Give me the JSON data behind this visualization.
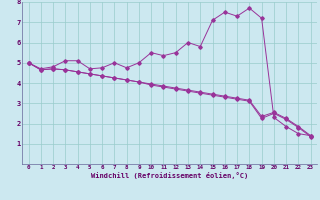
{
  "xlabel": "Windchill (Refroidissement éolien,°C)",
  "bg_color": "#cce8f0",
  "line_color": "#993399",
  "grid_color": "#99cccc",
  "xlim": [
    -0.5,
    23.5
  ],
  "ylim": [
    0,
    8
  ],
  "xticks": [
    0,
    1,
    2,
    3,
    4,
    5,
    6,
    7,
    8,
    9,
    10,
    11,
    12,
    13,
    14,
    15,
    16,
    17,
    18,
    19,
    20,
    21,
    22,
    23
  ],
  "yticks": [
    1,
    2,
    3,
    4,
    5,
    6,
    7,
    8
  ],
  "line1_x": [
    0,
    1,
    2,
    3,
    4,
    5,
    6,
    7,
    8,
    9,
    10,
    11,
    12,
    13,
    14,
    15,
    16,
    17,
    18,
    19,
    20,
    21,
    22,
    23
  ],
  "line1_y": [
    5.0,
    4.7,
    4.8,
    5.1,
    5.1,
    4.7,
    4.75,
    5.0,
    4.75,
    5.0,
    5.5,
    5.35,
    5.5,
    6.0,
    5.8,
    7.1,
    7.5,
    7.3,
    7.7,
    7.2,
    2.3,
    1.85,
    1.5,
    1.4
  ],
  "line2_x": [
    0,
    1,
    2,
    3,
    4,
    5,
    6,
    7,
    8,
    9,
    10,
    11,
    12,
    13,
    14,
    15,
    16,
    17,
    18,
    19,
    20,
    21,
    22,
    23
  ],
  "line2_y": [
    5.0,
    4.65,
    4.7,
    4.65,
    4.55,
    4.45,
    4.35,
    4.25,
    4.15,
    4.05,
    3.95,
    3.85,
    3.75,
    3.65,
    3.55,
    3.45,
    3.35,
    3.25,
    3.15,
    2.35,
    2.55,
    2.25,
    1.85,
    1.4
  ],
  "line3_x": [
    0,
    1,
    2,
    3,
    4,
    5,
    6,
    7,
    8,
    9,
    10,
    11,
    12,
    13,
    14,
    15,
    16,
    17,
    18,
    19,
    20,
    21,
    22,
    23
  ],
  "line3_y": [
    5.0,
    4.65,
    4.7,
    4.65,
    4.55,
    4.45,
    4.35,
    4.25,
    4.15,
    4.05,
    3.9,
    3.8,
    3.7,
    3.6,
    3.5,
    3.4,
    3.3,
    3.2,
    3.1,
    2.25,
    2.5,
    2.2,
    1.8,
    1.35
  ],
  "figsize": [
    3.2,
    2.0
  ],
  "dpi": 100
}
